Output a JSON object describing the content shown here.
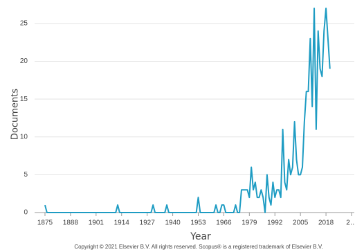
{
  "chart_data": {
    "type": "line",
    "x_label": "Year",
    "y_label": "Documents",
    "footer": "Copyright © 2021 Elsevier B.V. All rights reserved. Scopus® is a registered trademark of Elsevier B.V.",
    "x": [
      1875,
      1876,
      1911,
      1912,
      1913,
      1929,
      1930,
      1931,
      1936,
      1937,
      1938,
      1952,
      1953,
      1954,
      1961,
      1962,
      1963,
      1964,
      1965,
      1966,
      1967,
      1971,
      1972,
      1973,
      1974,
      1975,
      1976,
      1977,
      1978,
      1979,
      1980,
      1981,
      1982,
      1983,
      1984,
      1985,
      1986,
      1987,
      1988,
      1989,
      1990,
      1991,
      1992,
      1993,
      1994,
      1995,
      1996,
      1997,
      1998,
      1999,
      2000,
      2001,
      2002,
      2003,
      2004,
      2005,
      2006,
      2007,
      2008,
      2009,
      2010,
      2011,
      2012,
      2013,
      2014,
      2015,
      2016,
      2017,
      2018,
      2019,
      2020
    ],
    "series": [
      {
        "name": "Documents",
        "color": "#1e9cc3",
        "values": [
          1,
          0,
          0,
          1,
          0,
          0,
          1,
          0,
          0,
          1,
          0,
          0,
          2,
          0,
          0,
          1,
          0,
          0,
          1,
          1,
          0,
          0,
          1,
          0,
          0,
          3,
          3,
          3,
          3,
          2,
          6,
          3,
          4,
          2,
          2,
          3,
          2,
          0,
          5,
          2,
          1,
          4,
          2,
          3,
          3,
          2,
          11,
          4,
          3,
          7,
          5,
          6,
          12,
          7,
          5,
          5,
          6,
          12,
          16,
          16,
          23,
          14,
          27,
          11,
          24,
          19,
          18,
          24,
          27,
          23,
          19
        ]
      }
    ],
    "xlim": [
      1875,
      2031
    ],
    "xticks": [
      1875,
      1888,
      1901,
      1914,
      1927,
      1940,
      1953,
      1966,
      1979,
      1992,
      2005,
      2018,
      {
        "value": 2031,
        "label": "2…"
      }
    ],
    "ylim": [
      0,
      27
    ],
    "yticks": [
      0,
      5,
      10,
      15,
      20,
      25
    ],
    "grid": true
  }
}
